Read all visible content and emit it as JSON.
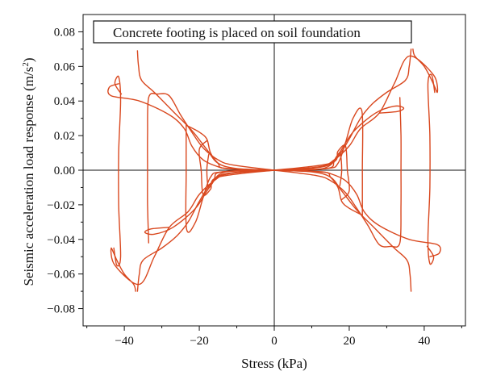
{
  "chart_data": {
    "type": "line",
    "annotation": "Concrete footing is placed on soil foundation",
    "xlabel": "Stress (kPa)",
    "ylabel_main": "Seismic acceleration load response (m/s",
    "ylabel_sup": "2",
    "ylabel_close": ")",
    "xlim": [
      -51,
      51
    ],
    "ylim": [
      -0.09,
      0.09
    ],
    "x_ticks": [
      -40,
      -20,
      0,
      20,
      40
    ],
    "x_tick_labels": [
      "−40",
      "−20",
      "0",
      "20",
      "40"
    ],
    "y_ticks": [
      -0.08,
      -0.06,
      -0.04,
      -0.02,
      0.0,
      0.02,
      0.04,
      0.06,
      0.08
    ],
    "y_tick_labels": [
      "−0.08",
      "−0.06",
      "−0.04",
      "−0.02",
      "0.00",
      "0.02",
      "0.04",
      "0.06",
      "0.08"
    ],
    "reference_lines": {
      "x": 0,
      "y": 0
    },
    "series_color": "#d9481f",
    "curves": [
      [
        [
          -36.5,
          0.069
        ],
        [
          -36.2,
          0.06
        ],
        [
          -35.4,
          0.052
        ],
        [
          -32,
          0.045
        ],
        [
          -27,
          0.034
        ],
        [
          -22,
          0.023
        ],
        [
          -18,
          0.012
        ],
        [
          -15,
          0.004
        ],
        [
          -10,
          0.001
        ],
        [
          0,
          0
        ]
      ],
      [
        [
          -40.8,
          0.044
        ],
        [
          -42.5,
          0.05
        ],
        [
          -41.5,
          0.054
        ],
        [
          -41,
          0.04
        ],
        [
          -41.5,
          0.01
        ],
        [
          -41.5,
          -0.02
        ],
        [
          -41,
          -0.05
        ],
        [
          -42,
          -0.055
        ],
        [
          -42.8,
          -0.045
        ]
      ],
      [
        [
          -41.5,
          0.05
        ],
        [
          -44,
          0.048
        ],
        [
          -43.5,
          0.043
        ],
        [
          -36,
          0.04
        ],
        [
          -28,
          0.032
        ],
        [
          -24,
          0.024
        ],
        [
          -22,
          0.014
        ],
        [
          -19,
          0.006
        ],
        [
          -15,
          0.002
        ],
        [
          -12,
          0.001
        ],
        [
          0,
          0
        ]
      ],
      [
        [
          -33.5,
          -0.042
        ],
        [
          -33.8,
          -0.02
        ],
        [
          -33.8,
          0.0
        ],
        [
          -33.8,
          0.02
        ],
        [
          -33.5,
          0.042
        ],
        [
          -31,
          0.044
        ],
        [
          -28,
          0.043
        ],
        [
          -25,
          0.032
        ],
        [
          -22,
          0.022
        ],
        [
          -19,
          0.013
        ],
        [
          -15,
          0.006
        ],
        [
          -11,
          0.003
        ],
        [
          0,
          0
        ]
      ],
      [
        [
          -37,
          -0.07
        ],
        [
          -37.5,
          -0.066
        ],
        [
          -40,
          -0.06
        ],
        [
          -42,
          -0.052
        ],
        [
          -43.5,
          -0.045
        ],
        [
          -42.5,
          -0.055
        ],
        [
          -36,
          -0.066
        ],
        [
          -32,
          -0.05
        ],
        [
          -28,
          -0.033
        ],
        [
          -23,
          -0.024
        ],
        [
          -20,
          -0.014
        ],
        [
          -16,
          -0.006
        ],
        [
          -12,
          -0.002
        ],
        [
          0,
          0
        ]
      ],
      [
        [
          -36.5,
          -0.07
        ],
        [
          -36,
          -0.06
        ],
        [
          -35,
          -0.052
        ],
        [
          -30,
          -0.045
        ],
        [
          -26,
          -0.038
        ],
        [
          -23,
          -0.03
        ],
        [
          -20,
          -0.018
        ],
        [
          -17,
          -0.008
        ],
        [
          -13,
          -0.002
        ],
        [
          0,
          0
        ]
      ],
      [
        [
          -23.5,
          0.026
        ],
        [
          -23.5,
          0.0
        ],
        [
          -23.4,
          -0.034
        ],
        [
          -21,
          -0.03
        ],
        [
          -19,
          -0.016
        ],
        [
          -17,
          -0.004
        ],
        [
          -14,
          -0.001
        ],
        [
          0,
          0
        ]
      ],
      [
        [
          -23.5,
          0.026
        ],
        [
          -20,
          0.022
        ],
        [
          -18,
          0.018
        ],
        [
          -17,
          0.01
        ],
        [
          -15,
          0.004
        ],
        [
          -13,
          0.001
        ],
        [
          0,
          0
        ]
      ],
      [
        [
          -17.5,
          0.009
        ],
        [
          -18,
          0.0
        ],
        [
          -17.5,
          -0.01
        ],
        [
          -16,
          -0.005
        ],
        [
          -14,
          -0.001
        ],
        [
          0,
          0
        ]
      ],
      [
        [
          -28,
          -0.033
        ],
        [
          -33,
          -0.034
        ],
        [
          -34.5,
          -0.036
        ],
        [
          -32,
          -0.037
        ],
        [
          -27,
          -0.033
        ],
        [
          -21,
          -0.022
        ],
        [
          -17,
          -0.009
        ],
        [
          -13,
          -0.001
        ],
        [
          0,
          0
        ]
      ],
      [
        [
          -18,
          0.017
        ],
        [
          -20,
          0.012
        ],
        [
          -19.5,
          0.0
        ],
        [
          -19,
          -0.014
        ],
        [
          -17,
          -0.011
        ],
        [
          -15,
          -0.004
        ],
        [
          0,
          0
        ]
      ],
      [
        [
          36.5,
          -0.07
        ],
        [
          36.2,
          -0.06
        ],
        [
          35.4,
          -0.052
        ],
        [
          32,
          -0.045
        ],
        [
          27,
          -0.034
        ],
        [
          22,
          -0.023
        ],
        [
          18,
          -0.012
        ],
        [
          15,
          -0.004
        ],
        [
          10,
          -0.001
        ],
        [
          0,
          0
        ]
      ],
      [
        [
          40.8,
          -0.044
        ],
        [
          42.5,
          -0.05
        ],
        [
          41.5,
          -0.054
        ],
        [
          41,
          -0.04
        ],
        [
          41.5,
          -0.01
        ],
        [
          41.5,
          0.02
        ],
        [
          41,
          0.05
        ],
        [
          42,
          0.055
        ],
        [
          42.8,
          0.045
        ]
      ],
      [
        [
          41.5,
          -0.05
        ],
        [
          44,
          -0.048
        ],
        [
          43.5,
          -0.043
        ],
        [
          36,
          -0.04
        ],
        [
          28,
          -0.032
        ],
        [
          24,
          -0.024
        ],
        [
          22,
          -0.014
        ],
        [
          19,
          -0.006
        ],
        [
          15,
          -0.002
        ],
        [
          12,
          -0.001
        ],
        [
          0,
          0
        ]
      ],
      [
        [
          33.5,
          0.042
        ],
        [
          33.8,
          0.02
        ],
        [
          33.8,
          0.0
        ],
        [
          33.8,
          -0.02
        ],
        [
          33.5,
          -0.042
        ],
        [
          31,
          -0.044
        ],
        [
          28,
          -0.043
        ],
        [
          25,
          -0.032
        ],
        [
          22,
          -0.022
        ],
        [
          19,
          -0.013
        ],
        [
          15,
          -0.006
        ],
        [
          11,
          -0.003
        ],
        [
          0,
          0
        ]
      ],
      [
        [
          37,
          0.07
        ],
        [
          37.5,
          0.066
        ],
        [
          40,
          0.06
        ],
        [
          42,
          0.052
        ],
        [
          43.5,
          0.045
        ],
        [
          42.5,
          0.055
        ],
        [
          36,
          0.066
        ],
        [
          32,
          0.05
        ],
        [
          28,
          0.033
        ],
        [
          23,
          0.024
        ],
        [
          20,
          0.014
        ],
        [
          16,
          0.006
        ],
        [
          12,
          0.002
        ],
        [
          0,
          0
        ]
      ],
      [
        [
          36.5,
          0.07
        ],
        [
          36,
          0.06
        ],
        [
          35,
          0.052
        ],
        [
          30,
          0.045
        ],
        [
          26,
          0.038
        ],
        [
          23,
          0.03
        ],
        [
          20,
          0.018
        ],
        [
          17,
          0.008
        ],
        [
          13,
          0.002
        ],
        [
          0,
          0
        ]
      ],
      [
        [
          23.5,
          -0.026
        ],
        [
          23.5,
          0.0
        ],
        [
          23.4,
          0.034
        ],
        [
          21,
          0.03
        ],
        [
          19,
          0.016
        ],
        [
          17,
          0.004
        ],
        [
          14,
          0.001
        ],
        [
          0,
          0
        ]
      ],
      [
        [
          23.5,
          -0.026
        ],
        [
          20,
          -0.022
        ],
        [
          18,
          -0.018
        ],
        [
          17,
          -0.01
        ],
        [
          15,
          -0.004
        ],
        [
          13,
          -0.001
        ],
        [
          0,
          0
        ]
      ],
      [
        [
          17.5,
          -0.009
        ],
        [
          18,
          0.0
        ],
        [
          17.5,
          0.01
        ],
        [
          16,
          0.005
        ],
        [
          14,
          0.001
        ],
        [
          0,
          0
        ]
      ],
      [
        [
          28,
          0.033
        ],
        [
          33,
          0.034
        ],
        [
          34.5,
          0.036
        ],
        [
          32,
          0.037
        ],
        [
          27,
          0.033
        ],
        [
          21,
          0.022
        ],
        [
          17,
          0.009
        ],
        [
          13,
          0.001
        ],
        [
          0,
          0
        ]
      ],
      [
        [
          18,
          -0.017
        ],
        [
          20,
          -0.012
        ],
        [
          19.5,
          0.0
        ],
        [
          19,
          0.014
        ],
        [
          17,
          0.011
        ],
        [
          15,
          0.004
        ],
        [
          0,
          0
        ]
      ]
    ]
  }
}
